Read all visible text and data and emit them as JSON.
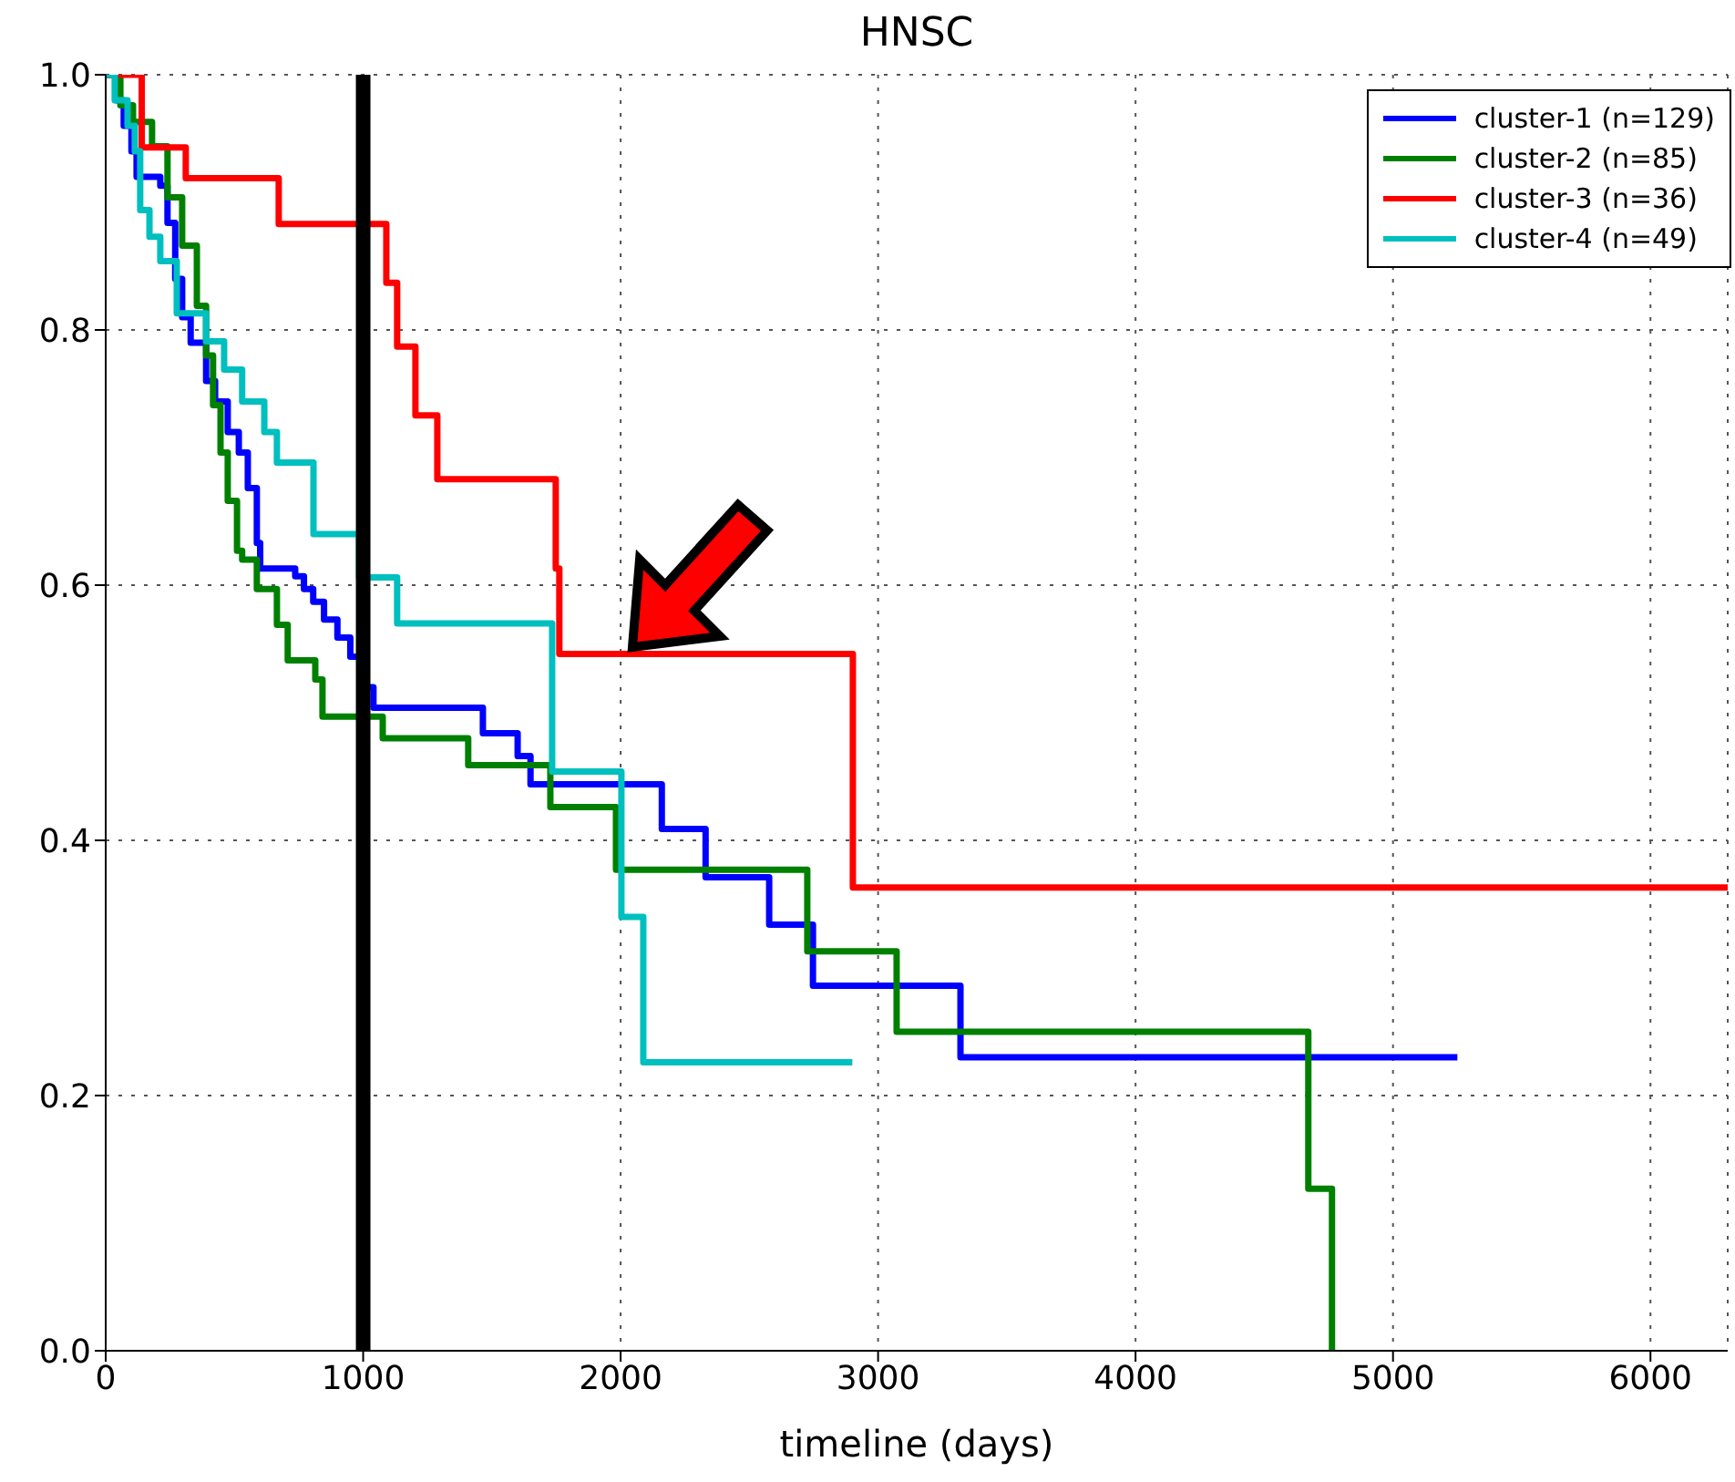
{
  "chart_data": {
    "type": "step",
    "title": "HNSC",
    "xlabel": "timeline (days)",
    "xlim": [
      0,
      6300
    ],
    "xticks": [
      0,
      1000,
      2000,
      3000,
      4000,
      5000,
      6000
    ],
    "ylim": [
      0,
      1
    ],
    "yticks": [
      {
        "value": 0,
        "label": "0.0"
      },
      0.2,
      0.4,
      0.6,
      0.8,
      {
        "value": 1,
        "label": "1.0"
      }
    ],
    "grid": true,
    "legend": "top right",
    "line_style": "solid",
    "marker": "none",
    "ref_lines": [
      {
        "axis": "x",
        "value": 1000,
        "color": "#000000"
      }
    ],
    "series": [
      {
        "name": "cluster-1 (n=129)",
        "color": "#0000ff",
        "x": [
          0,
          40,
          70,
          100,
          120,
          212,
          240,
          270,
          297,
          330,
          390,
          425,
          474,
          517,
          552,
          587,
          600,
          736,
          770,
          806,
          848,
          900,
          950,
          1005,
          1040,
          1465,
          1600,
          1650,
          2160,
          2330,
          2577,
          2747,
          3320,
          5250
        ],
        "values": [
          1,
          0.98,
          0.96,
          0.94,
          0.92,
          0.913,
          0.884,
          0.84,
          0.81,
          0.79,
          0.76,
          0.744,
          0.72,
          0.704,
          0.676,
          0.633,
          0.613,
          0.607,
          0.597,
          0.587,
          0.573,
          0.559,
          0.544,
          0.52,
          0.504,
          0.484,
          0.466,
          0.444,
          0.409,
          0.371,
          0.334,
          0.286,
          0.23,
          0.23
        ]
      },
      {
        "name": "cluster-2 (n=85)",
        "color": "#008000",
        "x": [
          0,
          57,
          106,
          180,
          240,
          297,
          354,
          390,
          417,
          446,
          474,
          510,
          530,
          587,
          665,
          707,
          814,
          842,
          1076,
          1408,
          1727,
          1982,
          2725,
          3072,
          4671,
          4763
        ],
        "values": [
          1,
          0.976,
          0.963,
          0.944,
          0.904,
          0.866,
          0.819,
          0.78,
          0.741,
          0.704,
          0.666,
          0.627,
          0.62,
          0.597,
          0.569,
          0.541,
          0.526,
          0.497,
          0.48,
          0.459,
          0.426,
          0.377,
          0.313,
          0.25,
          0.127,
          0
        ]
      },
      {
        "name": "cluster-3 (n=36)",
        "color": "#ff0000",
        "x": [
          0,
          140,
          311,
          672,
          1090,
          1132,
          1203,
          1288,
          1748,
          1762,
          2902,
          6300
        ],
        "values": [
          1,
          0.943,
          0.919,
          0.883,
          0.837,
          0.787,
          0.733,
          0.683,
          0.613,
          0.546,
          0.363,
          0.363
        ]
      },
      {
        "name": "cluster-4 (n=49)",
        "color": "#00bfbf",
        "x": [
          0,
          35,
          85,
          113,
          134,
          170,
          212,
          276,
          390,
          460,
          530,
          616,
          665,
          807,
          984,
          1132,
          1734,
          2003,
          2088,
          2900
        ],
        "values": [
          1,
          0.98,
          0.96,
          0.94,
          0.894,
          0.873,
          0.854,
          0.813,
          0.791,
          0.769,
          0.744,
          0.72,
          0.696,
          0.64,
          0.606,
          0.57,
          0.454,
          0.34,
          0.226,
          0.226
        ]
      }
    ]
  }
}
